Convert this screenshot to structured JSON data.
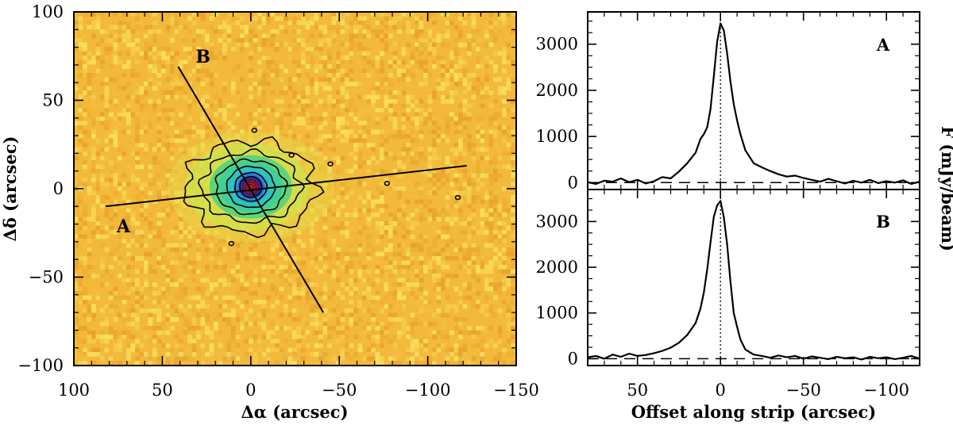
{
  "chart_data": [
    {
      "type": "heatmap",
      "title": "",
      "xlabel": "Δα (arcsec)",
      "ylabel": "Δδ (arcsec)",
      "xlim": [
        100,
        -150
      ],
      "ylim": [
        -100,
        100
      ],
      "x_ticks": [
        100,
        50,
        0,
        -50,
        -100,
        -150
      ],
      "x_tick_labels": [
        "100",
        "50",
        "0",
        "−50",
        "−100",
        "−150"
      ],
      "y_ticks": [
        -100,
        -50,
        0,
        50,
        100
      ],
      "y_tick_labels": [
        "−100",
        "−50",
        "0",
        "50",
        "100"
      ],
      "source_center": [
        0,
        1
      ],
      "background_color": "#f2b93a",
      "colormap": [
        "#f2b93a",
        "#e8d840",
        "#c6e34a",
        "#5fd47a",
        "#2ec3c0",
        "#2a6fd6",
        "#2a2aa0",
        "#7a1a6a",
        "#c0203a"
      ],
      "contour_levels_count": 9,
      "strips": [
        {
          "label": "A",
          "start": [
            82,
            -10
          ],
          "end": [
            -122,
            13
          ],
          "label_pos": [
            72,
            -21
          ]
        },
        {
          "label": "B",
          "start": [
            41,
            69
          ],
          "end": [
            -41,
            -70
          ],
          "label_pos": [
            27,
            75
          ]
        }
      ]
    },
    {
      "type": "line",
      "panel_label": "A",
      "xlabel": "",
      "ylabel": "F (mJy/beam)",
      "xlim": [
        80,
        -120
      ],
      "ylim": [
        -150,
        3700
      ],
      "x_ticks": [
        50,
        0,
        -50,
        -100
      ],
      "x_tick_labels": [
        "50",
        "0",
        "−50",
        "−100"
      ],
      "y_ticks": [
        0,
        1000,
        2000,
        3000
      ],
      "y_tick_labels": [
        "0",
        "1000",
        "2000",
        "3000"
      ],
      "series": [
        {
          "name": "A",
          "x": [
            80,
            75,
            70,
            65,
            60,
            55,
            50,
            45,
            40,
            35,
            30,
            25,
            20,
            15,
            12,
            10,
            8,
            6,
            4,
            2,
            0,
            -2,
            -4,
            -6,
            -8,
            -10,
            -12,
            -15,
            -20,
            -25,
            -30,
            -35,
            -40,
            -45,
            -50,
            -55,
            -60,
            -65,
            -70,
            -75,
            -80,
            -85,
            -90,
            -95,
            -100,
            -105,
            -110,
            -115,
            -120
          ],
          "y": [
            10,
            -30,
            40,
            20,
            90,
            10,
            60,
            -20,
            30,
            120,
            90,
            240,
            420,
            650,
            950,
            1050,
            1200,
            1600,
            2300,
            3050,
            3450,
            3300,
            2800,
            2200,
            1700,
            1350,
            1050,
            700,
            420,
            330,
            250,
            180,
            130,
            150,
            100,
            60,
            20,
            80,
            30,
            -20,
            40,
            0,
            60,
            -10,
            30,
            0,
            50,
            -30,
            20
          ]
        }
      ],
      "zero_line": "dashed",
      "center_line": "dotted at x = 0"
    },
    {
      "type": "line",
      "panel_label": "B",
      "xlabel": "Offset along strip (arcsec)",
      "ylabel": "F (mJy/beam)",
      "xlim": [
        80,
        -120
      ],
      "ylim": [
        -150,
        3700
      ],
      "x_ticks": [
        50,
        0,
        -50,
        -100
      ],
      "x_tick_labels": [
        "50",
        "0",
        "−50",
        "−100"
      ],
      "y_ticks": [
        0,
        1000,
        2000,
        3000
      ],
      "y_tick_labels": [
        "0",
        "1000",
        "2000",
        "3000"
      ],
      "series": [
        {
          "name": "B",
          "x": [
            80,
            75,
            70,
            65,
            60,
            55,
            50,
            45,
            40,
            35,
            30,
            25,
            20,
            15,
            12,
            10,
            8,
            6,
            4,
            2,
            0,
            -2,
            -4,
            -6,
            -8,
            -10,
            -12,
            -15,
            -20,
            -25,
            -30,
            -35,
            -40,
            -45,
            -50,
            -55,
            -60,
            -65,
            -70,
            -75,
            -80,
            -85,
            -90,
            -95,
            -100,
            -105,
            -110,
            -115,
            -120
          ],
          "y": [
            30,
            60,
            0,
            90,
            40,
            110,
            60,
            80,
            120,
            170,
            240,
            350,
            520,
            780,
            1100,
            1450,
            1950,
            2550,
            3100,
            3350,
            3450,
            3100,
            2500,
            1700,
            1000,
            700,
            420,
            200,
            90,
            60,
            20,
            70,
            30,
            60,
            0,
            50,
            20,
            -10,
            40,
            10,
            30,
            -20,
            40,
            10,
            30,
            -10,
            20,
            60,
            0
          ]
        }
      ],
      "zero_line": "dashed",
      "center_line": "dotted at x = 0"
    }
  ]
}
